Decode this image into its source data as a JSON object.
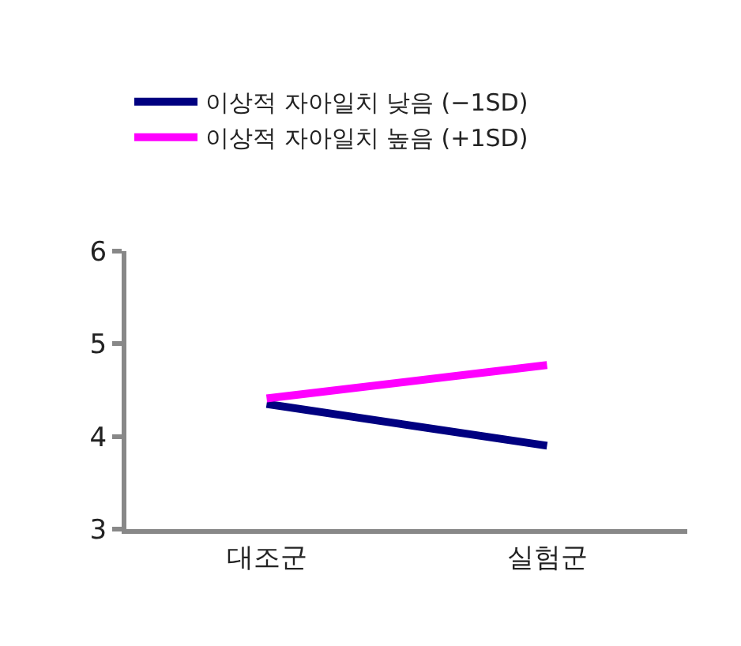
{
  "chart_data": {
    "type": "line",
    "categories": [
      "대조군",
      "실험군"
    ],
    "series": [
      {
        "name": "이상적 자아일치 낮음 (−1SD)",
        "color": "#000080",
        "values": [
          4.35,
          3.9
        ]
      },
      {
        "name": "이상적 자아일치 높음 (+1SD)",
        "color": "#ff00ff",
        "values": [
          4.41,
          4.77
        ]
      }
    ],
    "ylim": [
      3,
      6
    ],
    "yticks": [
      3,
      4,
      5,
      6
    ],
    "legend": "top left",
    "marker": "none",
    "line_style": "solid"
  }
}
